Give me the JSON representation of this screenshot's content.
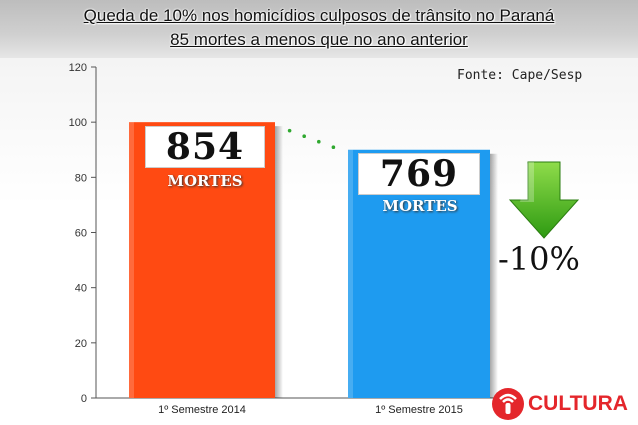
{
  "header": {
    "title_line1": "Queda de 10% nos homicídios culposos de trânsito no Paraná",
    "title_line2": "85 mortes a menos que no ano anterior"
  },
  "source_label": "Fonte: Cape/Sesp",
  "colors": {
    "bar_2014": "#ff4a12",
    "bar_2015": "#1e9bf0",
    "arrow": "#3fae1f",
    "dots": "#2fa82f",
    "logo_red": "#e4262b"
  },
  "bars": [
    {
      "value_label": "854",
      "unit_label": "MORTES"
    },
    {
      "value_label": "769",
      "unit_label": "MORTES"
    }
  ],
  "change_label": "-10%",
  "logo_text": "CULTURA",
  "chart_data": {
    "type": "bar",
    "categories": [
      "1º Semestre 2014",
      "1º Semestre 2015"
    ],
    "values": [
      100,
      90
    ],
    "ylim": [
      0,
      120
    ],
    "yticks": [
      0,
      20,
      40,
      60,
      80,
      100,
      120
    ],
    "grid": false,
    "annotations": [
      "854 MORTES",
      "769 MORTES",
      "-10%"
    ]
  }
}
